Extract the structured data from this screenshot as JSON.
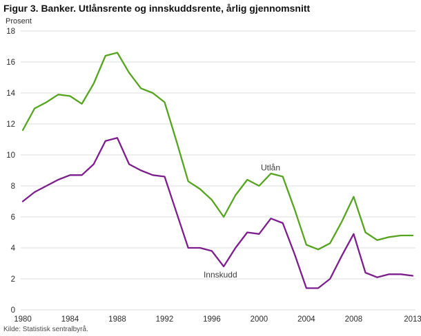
{
  "title": "Figur 3. Banker. Utlånsrente og innskuddsrente, årlig gjennomsnitt",
  "ylabel": "Prosent",
  "source": "Kilde: Statistisk sentralbyrå.",
  "style": {
    "grid_color": "#d9dde0",
    "tick_color": "#2b2b2b",
    "annotation_color": "#3c3c3c",
    "utlan_color": "#55a41e",
    "innskudd_color": "#7d1d8d"
  },
  "chart_data": {
    "type": "line",
    "title": "Figur 3. Banker. Utlånsrente og innskuddsrente, årlig gjennomsnitt",
    "xlabel": "",
    "ylabel": "Prosent",
    "xlim": [
      1980,
      2013
    ],
    "ylim": [
      0,
      18
    ],
    "xticks": [
      1980,
      1984,
      1988,
      1992,
      1996,
      2000,
      2004,
      2008,
      2013
    ],
    "yticks": [
      0,
      2,
      4,
      6,
      8,
      10,
      12,
      14,
      16,
      18
    ],
    "grid": true,
    "legend_position": "inline-annotations",
    "x": [
      1980,
      1981,
      1982,
      1983,
      1984,
      1985,
      1986,
      1987,
      1988,
      1989,
      1990,
      1991,
      1992,
      1993,
      1994,
      1995,
      1996,
      1997,
      1998,
      1999,
      2000,
      2001,
      2002,
      2003,
      2004,
      2005,
      2006,
      2007,
      2008,
      2009,
      2010,
      2011,
      2012,
      2013
    ],
    "series": [
      {
        "name": "Utlån",
        "color": "#55a41e",
        "values": [
          11.6,
          13.0,
          13.4,
          13.9,
          13.8,
          13.3,
          14.6,
          16.4,
          16.6,
          15.3,
          14.3,
          14.0,
          13.4,
          10.9,
          8.3,
          7.8,
          7.1,
          6.0,
          7.4,
          8.4,
          8.0,
          8.8,
          8.6,
          6.5,
          4.2,
          3.9,
          4.3,
          5.7,
          7.3,
          5.0,
          4.5,
          4.7,
          4.8,
          4.8
        ]
      },
      {
        "name": "Innskudd",
        "color": "#7d1d8d",
        "values": [
          7.0,
          7.6,
          8.0,
          8.4,
          8.7,
          8.7,
          9.4,
          10.9,
          11.1,
          9.4,
          9.0,
          8.7,
          8.6,
          6.3,
          4.0,
          4.0,
          3.8,
          2.8,
          4.0,
          5.0,
          4.9,
          5.9,
          5.6,
          3.6,
          1.4,
          1.4,
          2.0,
          3.5,
          4.9,
          2.4,
          2.1,
          2.3,
          2.3,
          2.2
        ]
      }
    ],
    "annotations": [
      {
        "text": "Utlån",
        "x": 2000.15,
        "y": 9.0
      },
      {
        "text": "Innskudd",
        "x": 1995.3,
        "y": 2.1
      }
    ]
  }
}
